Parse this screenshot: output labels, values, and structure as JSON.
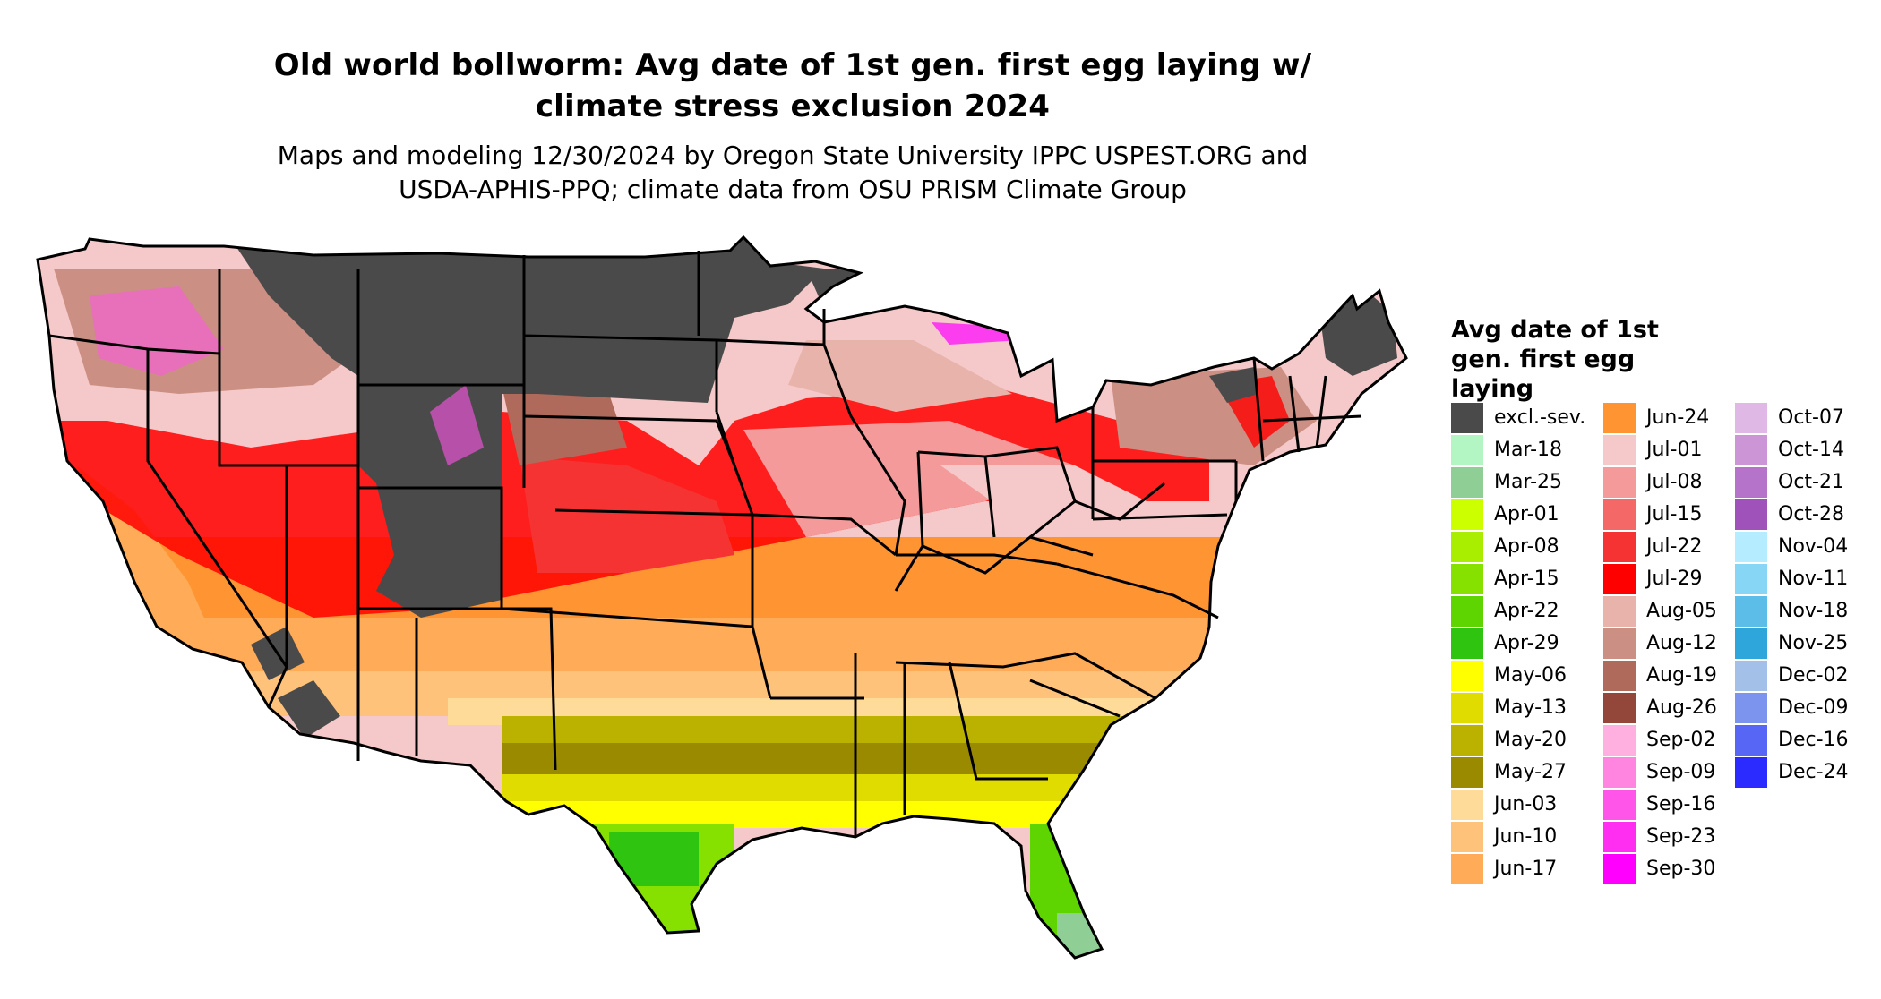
{
  "title": {
    "line1": "Old world bollworm: Avg date of 1st gen. first egg laying w/",
    "line2": "climate stress exclusion 2024"
  },
  "subtitle": {
    "line1": "Maps and modeling 12/30/2024 by Oregon State University IPPC USPEST.ORG and",
    "line2": "USDA-APHIS-PPQ; climate data from OSU PRISM Climate Group"
  },
  "legend": {
    "title_line1": "Avg date of 1st",
    "title_line2": "gen. first egg",
    "title_line3": "laying",
    "items": [
      {
        "label": "excl.-sev.",
        "color": "#4a4a4a"
      },
      {
        "label": "Mar-18",
        "color": "#b3f5c3"
      },
      {
        "label": "Mar-25",
        "color": "#8fcf96"
      },
      {
        "label": "Apr-01",
        "color": "#ccff00"
      },
      {
        "label": "Apr-08",
        "color": "#a9ee00"
      },
      {
        "label": "Apr-15",
        "color": "#86e000"
      },
      {
        "label": "Apr-22",
        "color": "#5ed400"
      },
      {
        "label": "Apr-29",
        "color": "#2ec40f"
      },
      {
        "label": "May-06",
        "color": "#ffff00"
      },
      {
        "label": "May-13",
        "color": "#e0dc00"
      },
      {
        "label": "May-20",
        "color": "#bbb200"
      },
      {
        "label": "May-27",
        "color": "#9a8a00"
      },
      {
        "label": "Jun-03",
        "color": "#ffdb99"
      },
      {
        "label": "Jun-10",
        "color": "#ffc27a"
      },
      {
        "label": "Jun-17",
        "color": "#ffab57"
      },
      {
        "label": "Jun-24",
        "color": "#ff9433"
      },
      {
        "label": "Jul-01",
        "color": "#f5c9c9"
      },
      {
        "label": "Jul-08",
        "color": "#f49a9a"
      },
      {
        "label": "Jul-15",
        "color": "#f56868"
      },
      {
        "label": "Jul-22",
        "color": "#f53333"
      },
      {
        "label": "Jul-29",
        "color": "#ff0000"
      },
      {
        "label": "Aug-05",
        "color": "#e8b3aa"
      },
      {
        "label": "Aug-12",
        "color": "#cc8f84"
      },
      {
        "label": "Aug-19",
        "color": "#b06a5c"
      },
      {
        "label": "Aug-26",
        "color": "#93473a"
      },
      {
        "label": "Sep-02",
        "color": "#ffb0e0"
      },
      {
        "label": "Sep-09",
        "color": "#ff85e0"
      },
      {
        "label": "Sep-16",
        "color": "#ff55e8"
      },
      {
        "label": "Sep-23",
        "color": "#ff2ef0"
      },
      {
        "label": "Sep-30",
        "color": "#ff00ff"
      },
      {
        "label": "Oct-07",
        "color": "#e0b8e6"
      },
      {
        "label": "Oct-14",
        "color": "#cc96d6"
      },
      {
        "label": "Oct-21",
        "color": "#b574c9"
      },
      {
        "label": "Oct-28",
        "color": "#a052bb"
      },
      {
        "label": "Nov-04",
        "color": "#b5ecff"
      },
      {
        "label": "Nov-11",
        "color": "#88d6f5"
      },
      {
        "label": "Nov-18",
        "color": "#5bbde8"
      },
      {
        "label": "Nov-25",
        "color": "#2ea6dc"
      },
      {
        "label": "Dec-02",
        "color": "#a3c1e8"
      },
      {
        "label": "Dec-09",
        "color": "#7d94ee"
      },
      {
        "label": "Dec-16",
        "color": "#5766f5"
      },
      {
        "label": "Dec-24",
        "color": "#2b2bff"
      }
    ]
  }
}
